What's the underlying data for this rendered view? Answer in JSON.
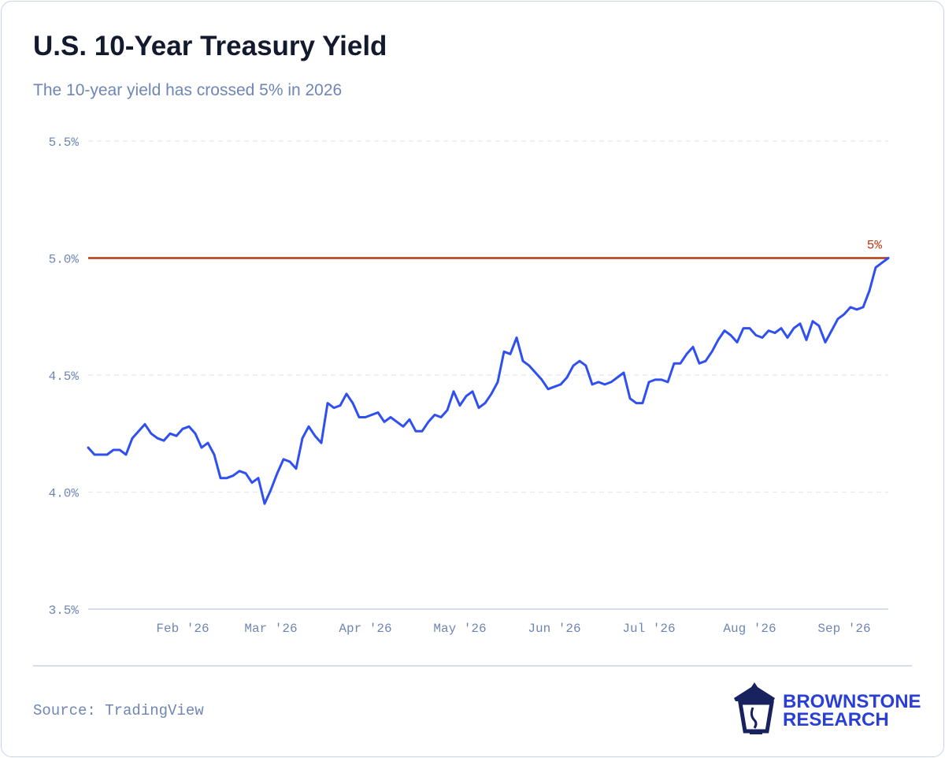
{
  "chart_data": {
    "type": "line",
    "title": "U.S. 10-Year Treasury Yield",
    "subtitle": "The 10-year yield has crossed 5% in 2026",
    "source": "Source: TradingView",
    "brand": {
      "line1": "BROWNSTONE",
      "line2": "RESEARCH"
    },
    "categories": [
      null,
      null,
      null,
      null,
      null,
      null,
      null,
      null,
      null,
      null,
      null,
      null,
      null,
      null,
      null,
      "Feb '26",
      null,
      null,
      null,
      null,
      null,
      null,
      null,
      null,
      null,
      null,
      null,
      null,
      null,
      "Mar '26",
      null,
      null,
      null,
      null,
      null,
      null,
      null,
      null,
      null,
      null,
      null,
      null,
      null,
      null,
      "Apr '26",
      null,
      null,
      null,
      null,
      null,
      null,
      null,
      null,
      null,
      null,
      null,
      null,
      null,
      null,
      "May '26",
      null,
      null,
      null,
      null,
      null,
      null,
      null,
      null,
      null,
      null,
      null,
      null,
      null,
      null,
      "Jun '26",
      null,
      null,
      null,
      null,
      null,
      null,
      null,
      null,
      null,
      null,
      null,
      null,
      null,
      null,
      "Jul '26",
      null,
      null,
      null,
      null,
      null,
      null,
      null,
      null,
      null,
      null,
      null,
      null,
      null,
      null,
      null,
      "Aug '26",
      null,
      null,
      null,
      null,
      null,
      null,
      null,
      null,
      null,
      null,
      null,
      null,
      null,
      null,
      "Sep '26",
      null,
      null,
      null,
      null,
      null,
      null,
      null
    ],
    "series": [
      {
        "name": "10-Year Yield",
        "color": "#2f4ff0",
        "values": [
          4.19,
          4.16,
          4.16,
          4.16,
          4.18,
          4.18,
          4.16,
          4.23,
          4.26,
          4.29,
          4.25,
          4.23,
          4.22,
          4.25,
          4.24,
          4.27,
          4.28,
          4.25,
          4.19,
          4.21,
          4.16,
          4.06,
          4.06,
          4.07,
          4.09,
          4.08,
          4.04,
          4.06,
          3.95,
          4.01,
          4.08,
          4.14,
          4.13,
          4.1,
          4.23,
          4.28,
          4.24,
          4.21,
          4.38,
          4.36,
          4.37,
          4.42,
          4.38,
          4.32,
          4.32,
          4.33,
          4.34,
          4.3,
          4.32,
          4.3,
          4.28,
          4.31,
          4.26,
          4.26,
          4.3,
          4.33,
          4.32,
          4.35,
          4.43,
          4.37,
          4.41,
          4.43,
          4.36,
          4.38,
          4.42,
          4.47,
          4.6,
          4.59,
          4.66,
          4.56,
          4.54,
          4.51,
          4.48,
          4.44,
          4.45,
          4.46,
          4.49,
          4.54,
          4.56,
          4.54,
          4.46,
          4.47,
          4.46,
          4.47,
          4.49,
          4.51,
          4.4,
          4.38,
          4.38,
          4.47,
          4.48,
          4.48,
          4.47,
          4.55,
          4.55,
          4.59,
          4.62,
          4.55,
          4.56,
          4.6,
          4.65,
          4.69,
          4.67,
          4.64,
          4.7,
          4.7,
          4.67,
          4.66,
          4.69,
          4.68,
          4.7,
          4.66,
          4.7,
          4.72,
          4.65,
          4.73,
          4.71,
          4.64,
          4.69,
          4.74,
          4.76,
          4.79,
          4.78,
          4.79,
          4.86,
          4.96,
          4.98,
          5.0
        ]
      }
    ],
    "ylim": [
      3.5,
      5.5
    ],
    "yticks": [
      {
        "value": 3.5,
        "label": "3.5%"
      },
      {
        "value": 4.0,
        "label": "4.0%"
      },
      {
        "value": 4.5,
        "label": "4.5%"
      },
      {
        "value": 5.0,
        "label": "5.0%"
      },
      {
        "value": 5.5,
        "label": "5.5%"
      }
    ],
    "grid": true,
    "reference_line": {
      "value": 5,
      "label": "5%",
      "color": "#b33a12"
    }
  }
}
